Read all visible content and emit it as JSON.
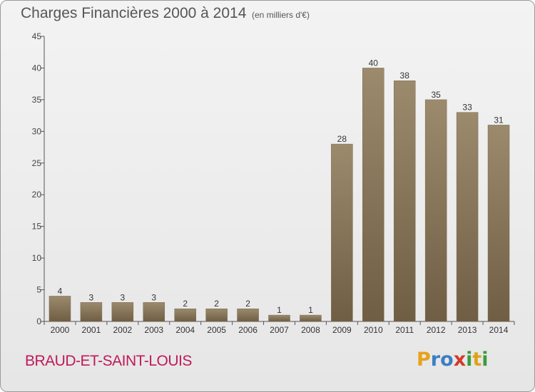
{
  "title": "Charges Financières 2000 à 2014",
  "subtitle": "(en milliers d'€)",
  "place": "BRAUD-ET-SAINT-LOUIS",
  "brand": {
    "letters": [
      "P",
      "r",
      "o",
      "x",
      "i",
      "t",
      "i"
    ],
    "colors": [
      "#e8a21a",
      "#3b7fc4",
      "#3b7fc4",
      "#d33a2c",
      "#3b9b3b",
      "#e0a21a",
      "#3b9b3b"
    ]
  },
  "colors": {
    "bar": "#9c8a6d",
    "bar_dark": "#6f5e44",
    "axis": "#555555",
    "grid": "#bbbbbb"
  },
  "chart_data": {
    "type": "bar",
    "categories": [
      "2000",
      "2001",
      "2002",
      "2003",
      "2004",
      "2005",
      "2006",
      "2007",
      "2008",
      "2009",
      "2010",
      "2011",
      "2012",
      "2013",
      "2014"
    ],
    "values": [
      4,
      3,
      3,
      3,
      2,
      2,
      2,
      1,
      1,
      28,
      40,
      38,
      35,
      33,
      31
    ],
    "ylim": [
      0,
      45
    ],
    "yticks": [
      0,
      5,
      10,
      15,
      20,
      25,
      30,
      35,
      40,
      45
    ],
    "grid": false
  }
}
